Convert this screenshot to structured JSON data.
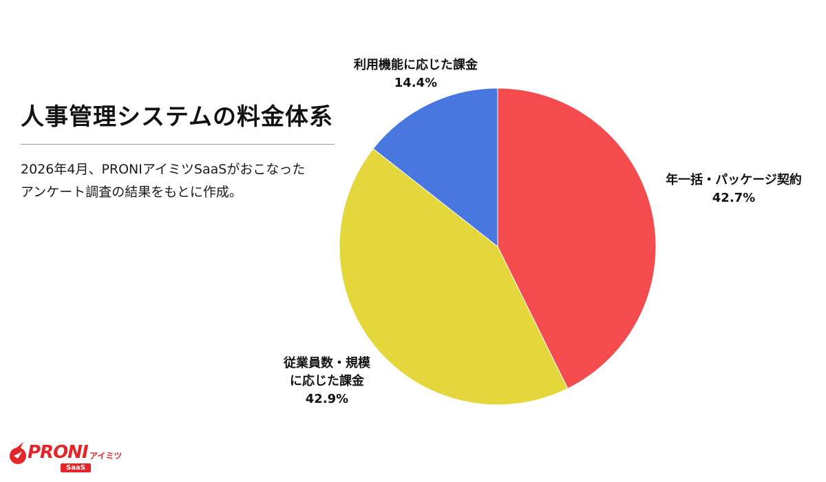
{
  "header": {
    "title": "人事管理システムの料金体系",
    "description_line1": "2026年4月、PRONIアイミツSaaSがおこなった",
    "description_line2": "アンケート調査の結果をもとに作成。"
  },
  "chart_data": {
    "type": "pie",
    "start": "12 o'clock, clockwise",
    "slices": [
      {
        "label_lines": [
          "年一括・パッケージ契約"
        ],
        "value": 42.7,
        "value_label": "42.7%",
        "color": "#f34b4e"
      },
      {
        "label_lines": [
          "従業員数・規模",
          "に応じた課金"
        ],
        "value": 42.9,
        "value_label": "42.9%",
        "color": "#e3d73c"
      },
      {
        "label_lines": [
          "利用機能に応じた課金"
        ],
        "value": 14.4,
        "value_label": "14.4%",
        "color": "#4877df"
      }
    ]
  },
  "logo": {
    "wordmark": "PRONI",
    "kana": "アイミツ",
    "sub": "SaaS",
    "color": "#e3262a"
  }
}
